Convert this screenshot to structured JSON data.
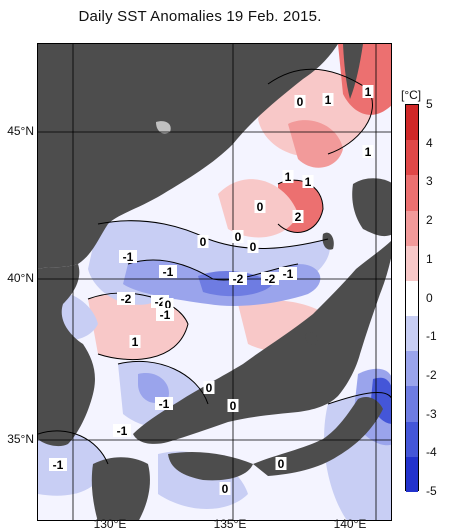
{
  "title": "Daily SST Anomalies 19 Feb. 2015.",
  "latitude_labels": [
    "45°N",
    "40°N",
    "35°N"
  ],
  "longitude_labels": [
    "130°E",
    "135°E",
    "140°E"
  ],
  "colorbar": {
    "unit": "[°C]",
    "labels": [
      "5",
      "4",
      "3",
      "2",
      "1",
      "0",
      "-1",
      "-2",
      "-3",
      "-4",
      "-5"
    ],
    "colors": [
      "#d02828",
      "#e04848",
      "#ec7070",
      "#f29a9a",
      "#f8c8c8",
      "#ffffff",
      "#c8cef4",
      "#9aa4ec",
      "#6e7ce2",
      "#4456d8",
      "#2232cc"
    ]
  },
  "colors": {
    "land": "#4d4d4d",
    "sea_neutral": "#ffffff",
    "grid": "#000000"
  },
  "contour_labels": [
    {
      "text": "1"
    },
    {
      "text": "0"
    },
    {
      "text": "1"
    },
    {
      "text": "1"
    },
    {
      "text": "1"
    },
    {
      "text": "1"
    },
    {
      "text": "0"
    },
    {
      "text": "2"
    },
    {
      "text": "0"
    },
    {
      "text": "0"
    },
    {
      "text": "0"
    },
    {
      "text": "-1"
    },
    {
      "text": "-1"
    },
    {
      "text": "-2"
    },
    {
      "text": "-2"
    },
    {
      "text": "-1"
    },
    {
      "text": "-2"
    },
    {
      "text": "-2"
    },
    {
      "text": "0"
    },
    {
      "text": "-1"
    },
    {
      "text": "1"
    },
    {
      "text": "-1"
    },
    {
      "text": "0"
    },
    {
      "text": "0"
    },
    {
      "text": "-1"
    },
    {
      "text": "-1"
    },
    {
      "text": "0"
    },
    {
      "text": "0"
    }
  ]
}
